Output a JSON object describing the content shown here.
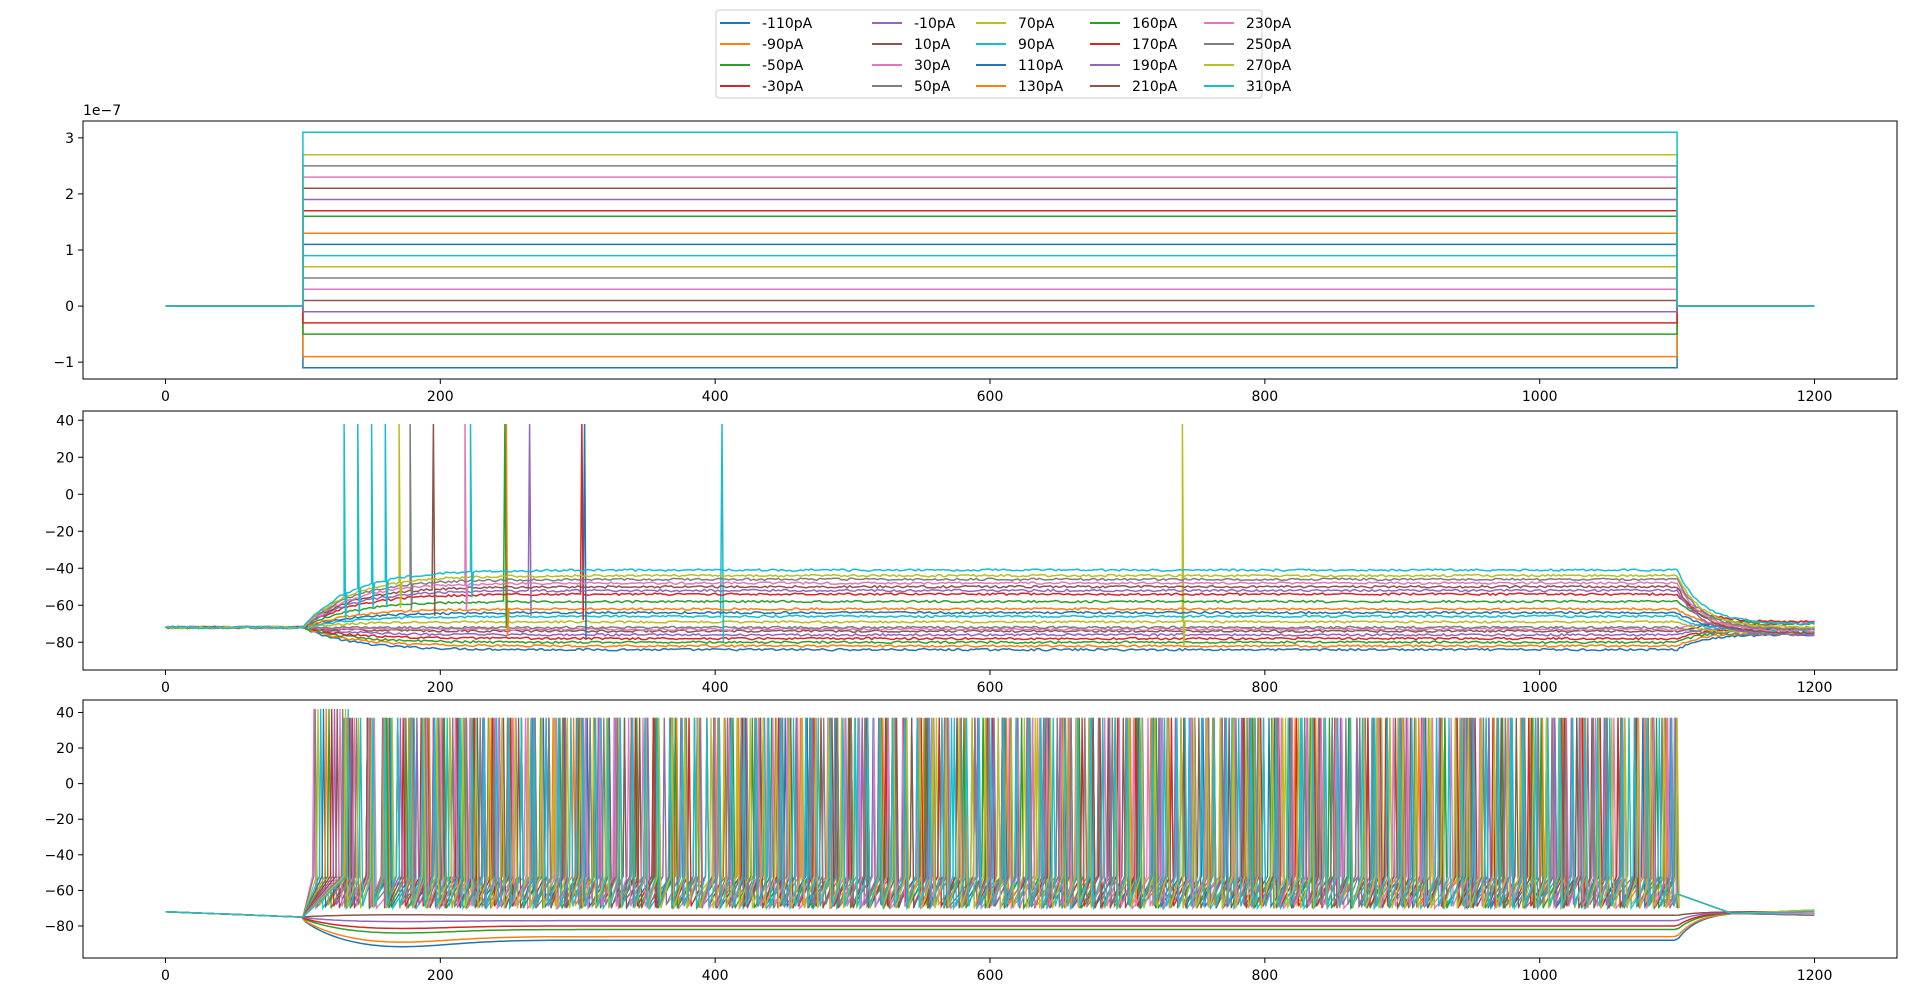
{
  "chart_data": {
    "type": "line",
    "legend": {
      "placement": "top-center",
      "columns": 5,
      "entries": [
        {
          "label": "-110pA",
          "color": "#1f77b4"
        },
        {
          "label": "-90pA",
          "color": "#ff7f0e"
        },
        {
          "label": "-50pA",
          "color": "#2ca02c"
        },
        {
          "label": "-30pA",
          "color": "#d62728"
        },
        {
          "label": "-10pA",
          "color": "#9467bd"
        },
        {
          "label": "10pA",
          "color": "#8c564b"
        },
        {
          "label": "30pA",
          "color": "#e377c2"
        },
        {
          "label": "50pA",
          "color": "#7f7f7f"
        },
        {
          "label": "70pA",
          "color": "#bcbd22"
        },
        {
          "label": "90pA",
          "color": "#17becf"
        },
        {
          "label": "110pA",
          "color": "#1f77b4"
        },
        {
          "label": "130pA",
          "color": "#ff7f0e"
        },
        {
          "label": "160pA",
          "color": "#2ca02c"
        },
        {
          "label": "170pA",
          "color": "#d62728"
        },
        {
          "label": "190pA",
          "color": "#9467bd"
        },
        {
          "label": "210pA",
          "color": "#8c564b"
        },
        {
          "label": "230pA",
          "color": "#e377c2"
        },
        {
          "label": "250pA",
          "color": "#7f7f7f"
        },
        {
          "label": "270pA",
          "color": "#bcbd22"
        },
        {
          "label": "310pA",
          "color": "#17becf"
        }
      ]
    },
    "panels": [
      {
        "name": "stimulus",
        "axis_offset_label": "1e−7",
        "xlim": [
          -60,
          1260
        ],
        "ylim": [
          -1.3,
          3.3
        ],
        "xticks": [
          0,
          200,
          400,
          600,
          800,
          1000,
          1200
        ],
        "yticks": [
          -1,
          0,
          1,
          2,
          3
        ],
        "ytick_labels": [
          "−1",
          "0",
          "1",
          "2",
          "3"
        ],
        "stim_start": 100,
        "stim_end": 1100,
        "t_end": 1200,
        "amplitudes": [
          -1.1,
          -0.9,
          -0.5,
          -0.3,
          -0.1,
          0.1,
          0.3,
          0.5,
          0.7,
          0.9,
          1.1,
          1.3,
          1.6,
          1.7,
          1.9,
          2.1,
          2.3,
          2.5,
          2.7,
          3.1
        ]
      },
      {
        "name": "voltage-response-1",
        "xlim": [
          -60,
          1260
        ],
        "ylim": [
          -95,
          45
        ],
        "xticks": [
          0,
          200,
          400,
          600,
          800,
          1000,
          1200
        ],
        "yticks": [
          -80,
          -60,
          -40,
          -20,
          0,
          20,
          40
        ],
        "ytick_labels": [
          "−80",
          "−60",
          "−40",
          "−20",
          "0",
          "20",
          "40"
        ],
        "rest_mV": -72,
        "steady_mV": [
          -84,
          -82,
          -80,
          -78,
          -76,
          -74,
          -73,
          -72,
          -69,
          -66,
          -64,
          -62,
          -58,
          -54,
          -52,
          -50,
          -48,
          -46,
          -44,
          -41
        ],
        "spike_times": [
          [],
          [],
          [],
          [],
          [],
          [],
          [],
          [],
          [
            740
          ],
          [
            405
          ],
          [
            305
          ],
          [
            248
          ],
          [
            247
          ],
          [
            303
          ],
          [
            265
          ],
          [
            195
          ],
          [
            218
          ],
          [
            178
          ],
          [
            170
          ],
          [
            150,
            160,
            130,
            140,
            222
          ]
        ],
        "spike_peak_mV": 38
      },
      {
        "name": "voltage-response-2",
        "xlim": [
          -60,
          1260
        ],
        "ylim": [
          -98,
          47
        ],
        "xticks": [
          0,
          200,
          400,
          600,
          800,
          1000,
          1200
        ],
        "yticks": [
          -80,
          -60,
          -40,
          -20,
          0,
          20,
          40
        ],
        "ytick_labels": [
          "−80",
          "−60",
          "−40",
          "−20",
          "0",
          "20",
          "40"
        ],
        "rest_mV": -75,
        "steady_mV": [
          -88,
          -86,
          -82,
          -80,
          -77,
          -74
        ],
        "spiking_first_spike_ms": [
          108,
          109,
          111,
          113,
          115,
          117,
          119,
          121,
          123,
          125,
          127,
          129,
          131,
          133
        ],
        "spiking_interval_ms": [
          22,
          20,
          18,
          17,
          16,
          15,
          14,
          13,
          12,
          11,
          10.5,
          10,
          9.5,
          9
        ],
        "spike_peak_mV": 37
      }
    ]
  }
}
